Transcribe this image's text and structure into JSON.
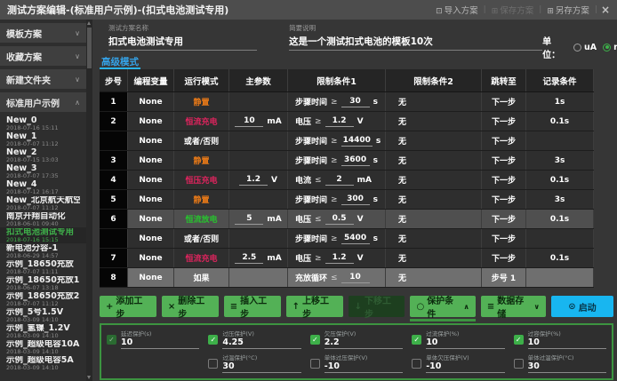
{
  "colors": {
    "accent_green": "#53b156",
    "accent_cyan": "#18b6f0",
    "tab_blue": "#35a3e8",
    "selected_item_green": "#3fae4a",
    "mode_rest": "#e77918",
    "mode_charge": "#e0245e",
    "mode_discharge": "#27c32e",
    "mode_logic": "#ffffff"
  },
  "titlebar": {
    "title": "测试方案编辑-(标准用户示例)-(扣式电池测试专用)",
    "actions": [
      {
        "label": "导入方案",
        "icon": "import-icon",
        "glyph": "⊡",
        "enabled": true
      },
      {
        "label": "保存方案",
        "icon": "save-icon",
        "glyph": "⊞",
        "enabled": false
      },
      {
        "label": "另存方案",
        "icon": "save-as-icon",
        "glyph": "⊞",
        "enabled": true
      }
    ],
    "close_glyph": "×"
  },
  "sidebar": {
    "sections": [
      {
        "label": "模板方案",
        "expanded": false
      },
      {
        "label": "收藏方案",
        "expanded": false
      },
      {
        "label": "新建文件夹",
        "expanded": false
      },
      {
        "label": "标准用户示例",
        "expanded": true
      }
    ],
    "items": [
      {
        "name": "New_0",
        "time": "2018-07-16 15:11",
        "selected": false
      },
      {
        "name": "New_1",
        "time": "2018-07-07 11:12",
        "selected": false
      },
      {
        "name": "New_2",
        "time": "2018-07-15 13:03",
        "selected": false
      },
      {
        "name": "New_3",
        "time": "2018-07-07 17:35",
        "selected": false
      },
      {
        "name": "New_4",
        "time": "2018-07-12 16:17",
        "selected": false
      },
      {
        "name": "New_北京航天航空",
        "time": "2018-07-07 11:12",
        "selected": false
      },
      {
        "name": "南京开翔自动化",
        "time": "2018-06-01 09:40",
        "selected": false
      },
      {
        "name": "扣式电池测试专用",
        "time": "2018-07-16 15:15",
        "selected": true
      },
      {
        "name": "新电池分容-1",
        "time": "2018-06-29 14:57",
        "selected": false
      },
      {
        "name": "示例_18650充放",
        "time": "2018-07-07 11:11",
        "selected": false
      },
      {
        "name": "示例_18650充放1",
        "time": "2018-06-07 13:18",
        "selected": false
      },
      {
        "name": "示例_18650充放2",
        "time": "2018-07-07 11:12",
        "selected": false
      },
      {
        "name": "示例_5号1.5V",
        "time": "2018-03-09 14:10",
        "selected": false
      },
      {
        "name": "示例_氢镍_1.2V",
        "time": "2018-03-09 14:10",
        "selected": false
      },
      {
        "name": "示例_超级电容10A",
        "time": "2018-03-09 14:10",
        "selected": false
      },
      {
        "name": "示例_超级电容5A",
        "time": "2018-03-09 14:10",
        "selected": false
      }
    ]
  },
  "form": {
    "name_label": "测试方案名称",
    "name_value": "扣式电池测试专用",
    "desc_label": "简要说明",
    "desc_value": "这是一个测试扣式电池的模板10次",
    "unit_label": "单位：",
    "units": [
      {
        "label": "uA",
        "selected": false
      },
      {
        "label": "mA",
        "selected": true
      },
      {
        "label": "A",
        "selected": false
      }
    ]
  },
  "tab": {
    "label": "高级模式"
  },
  "table": {
    "headers": [
      "步号",
      "编程变量",
      "运行模式",
      "主参数",
      "限制条件1",
      "限制条件2",
      "跳转至",
      "记录条件"
    ],
    "rows": [
      {
        "step": "1",
        "variable": "None",
        "mode": "静置",
        "mode_type": "rest",
        "main": null,
        "cond1": {
          "label": "步骤时间",
          "op": "≥",
          "value": "30",
          "unit": "s"
        },
        "cond2": "无",
        "jump": "下一步",
        "record": "1s",
        "hl": 0
      },
      {
        "step": "2",
        "variable": "None",
        "mode": "恒流充电",
        "mode_type": "charge",
        "main": {
          "value": "10",
          "unit": "mA"
        },
        "cond1": {
          "label": "电压",
          "op": "≥",
          "value": "1.2",
          "unit": "V"
        },
        "cond2": "无",
        "jump": "下一步",
        "record": "0.1s",
        "hl": 0
      },
      {
        "step": "",
        "variable": "None",
        "mode": "或者/否则",
        "mode_type": "logic",
        "main": null,
        "cond1": {
          "label": "步骤时间",
          "op": "≥",
          "value": "14400",
          "unit": "s"
        },
        "cond2": "无",
        "jump": "下一步",
        "record": "",
        "hl": 0
      },
      {
        "step": "3",
        "variable": "None",
        "mode": "静置",
        "mode_type": "rest",
        "main": null,
        "cond1": {
          "label": "步骤时间",
          "op": "≥",
          "value": "3600",
          "unit": "s"
        },
        "cond2": "无",
        "jump": "下一步",
        "record": "3s",
        "hl": 0
      },
      {
        "step": "4",
        "variable": "None",
        "mode": "恒压充电",
        "mode_type": "charge",
        "main": {
          "value": "1.2",
          "unit": "V"
        },
        "cond1": {
          "label": "电流",
          "op": "≤",
          "value": "2",
          "unit": "mA"
        },
        "cond2": "无",
        "jump": "下一步",
        "record": "0.1s",
        "hl": 0
      },
      {
        "step": "5",
        "variable": "None",
        "mode": "静置",
        "mode_type": "rest",
        "main": null,
        "cond1": {
          "label": "步骤时间",
          "op": "≥",
          "value": "300",
          "unit": "s"
        },
        "cond2": "无",
        "jump": "下一步",
        "record": "3s",
        "hl": 0
      },
      {
        "step": "6",
        "variable": "None",
        "mode": "恒流放电",
        "mode_type": "discharge",
        "main": {
          "value": "5",
          "unit": "mA"
        },
        "cond1": {
          "label": "电压",
          "op": "≤",
          "value": "0.5",
          "unit": "V"
        },
        "cond2": "无",
        "jump": "下一步",
        "record": "0.1s",
        "hl": 1
      },
      {
        "step": "",
        "variable": "None",
        "mode": "或者/否则",
        "mode_type": "logic",
        "main": null,
        "cond1": {
          "label": "步骤时间",
          "op": "≥",
          "value": "5400",
          "unit": "s"
        },
        "cond2": "无",
        "jump": "下一步",
        "record": "",
        "hl": 0
      },
      {
        "step": "7",
        "variable": "None",
        "mode": "恒流充电",
        "mode_type": "charge",
        "main": {
          "value": "2.5",
          "unit": "mA"
        },
        "cond1": {
          "label": "电压",
          "op": "≥",
          "value": "1.2",
          "unit": "V"
        },
        "cond2": "无",
        "jump": "下一步",
        "record": "0.1s",
        "hl": 0
      },
      {
        "step": "8",
        "variable": "None",
        "mode": "如果",
        "mode_type": "logic",
        "main": null,
        "cond1": {
          "label": "充放循环",
          "op": "≤",
          "value": "10",
          "unit": ""
        },
        "cond2": "无",
        "jump": "步号 1",
        "record": "",
        "hl": 2
      }
    ]
  },
  "toolbar": {
    "buttons": [
      {
        "label": "添加工步",
        "icon": "add-step-icon",
        "glyph": "+",
        "style": "green"
      },
      {
        "label": "删除工步",
        "icon": "delete-step-icon",
        "glyph": "×",
        "style": "green"
      },
      {
        "label": "插入工步",
        "icon": "insert-step-icon",
        "glyph": "≡",
        "style": "green"
      },
      {
        "label": "上移工步",
        "icon": "move-up-icon",
        "glyph": "↑",
        "style": "green"
      },
      {
        "label": "下移工步",
        "icon": "move-down-icon",
        "glyph": "↓",
        "style": "disabled"
      },
      {
        "label": "保护条件",
        "icon": "shield-icon",
        "glyph": "○",
        "style": "green",
        "chevron": "∧",
        "active": true
      },
      {
        "label": "数据存储",
        "icon": "database-icon",
        "glyph": "≡",
        "style": "green",
        "chevron": "∨"
      },
      {
        "label": "启动",
        "icon": "power-icon",
        "glyph": "⊙",
        "style": "cyan"
      }
    ]
  },
  "protection": {
    "row1": [
      {
        "label": "延迟保护(s)",
        "value": "10",
        "checked": true,
        "dim": true
      },
      {
        "label": "过压保护(V)",
        "value": "4.25",
        "checked": true,
        "dim": false
      },
      {
        "label": "欠压保护(V)",
        "value": "2.2",
        "checked": true,
        "dim": false
      },
      {
        "label": "过流保护(%)",
        "value": "10",
        "checked": true,
        "dim": false
      },
      {
        "label": "过容保护(%)",
        "value": "10",
        "checked": true,
        "dim": false
      }
    ],
    "row2": [
      {
        "empty": true
      },
      {
        "label": "过温保护(°C)",
        "value": "30",
        "checked": false,
        "dim": false
      },
      {
        "label": "单体过压保护(V)",
        "value": "-10",
        "checked": false,
        "dim": false
      },
      {
        "label": "单体欠压保护(V)",
        "value": "-10",
        "checked": false,
        "dim": false
      },
      {
        "label": "单体过温保护(°C)",
        "value": "30",
        "checked": false,
        "dim": false
      }
    ]
  }
}
